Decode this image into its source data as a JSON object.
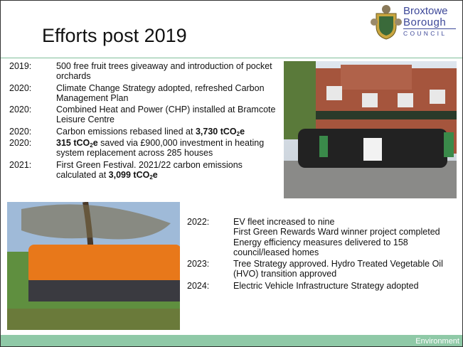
{
  "header": {
    "title": "Efforts post 2019",
    "logo": [
      "Broxtowe",
      "Borough",
      "COUNCIL"
    ]
  },
  "timeline_top": [
    {
      "year": "2019:",
      "paragraphs": [
        [
          {
            "text": "500 free fruit trees giveaway and introduction of pocket orchards"
          }
        ]
      ]
    },
    {
      "year": "2020:",
      "paragraphs": [
        [
          {
            "text": "Climate Change Strategy adopted, refreshed Carbon Management Plan"
          }
        ]
      ]
    },
    {
      "year": "2020:",
      "paragraphs": [
        [
          {
            "text": "Combined Heat and Power (CHP) installed at Bramcote Leisure Centre"
          }
        ]
      ]
    },
    {
      "year": "2020:",
      "paragraphs": [
        [
          {
            "text": "Carbon emissions rebased lined at "
          },
          {
            "text": "3,730 tCO",
            "style": "bold"
          },
          {
            "text": "2",
            "style": "bold-sub"
          },
          {
            "text": "e",
            "style": "bold"
          }
        ]
      ]
    },
    {
      "year": "2020:",
      "paragraphs": [
        [
          {
            "text": "315 tCO",
            "style": "bold"
          },
          {
            "text": "2",
            "style": "bold-sub"
          },
          {
            "text": "e",
            "style": "bold"
          },
          {
            "text": " saved via £900,000 investment in heating system replacement across 285 houses"
          }
        ]
      ]
    },
    {
      "year": "2021:",
      "paragraphs": [
        [
          {
            "text": "First Green Festival.  2021/22 carbon emissions calculated at "
          },
          {
            "text": "3,099 tCO",
            "style": "bold"
          },
          {
            "text": "2",
            "style": "bold-sub"
          },
          {
            "text": "e",
            "style": "bold"
          }
        ]
      ]
    }
  ],
  "timeline_bottom": [
    {
      "year": "2022:",
      "paragraphs": [
        [
          {
            "text": "EV fleet increased to nine"
          }
        ],
        [
          {
            "text": "First Green Rewards Ward winner  project completed"
          }
        ],
        [
          {
            "text": "Energy efficiency measures delivered to 158 council/leased homes"
          }
        ]
      ]
    },
    {
      "year": "2023:",
      "paragraphs": [
        [
          {
            "text": "Tree Strategy approved. Hydro Treated Vegetable Oil (HVO) transition approved"
          }
        ]
      ]
    },
    {
      "year": "2024:",
      "paragraphs": [
        [
          {
            "text": "Electric Vehicle Infrastructure Strategy adopted"
          }
        ]
      ]
    }
  ],
  "footer": "Environment"
}
